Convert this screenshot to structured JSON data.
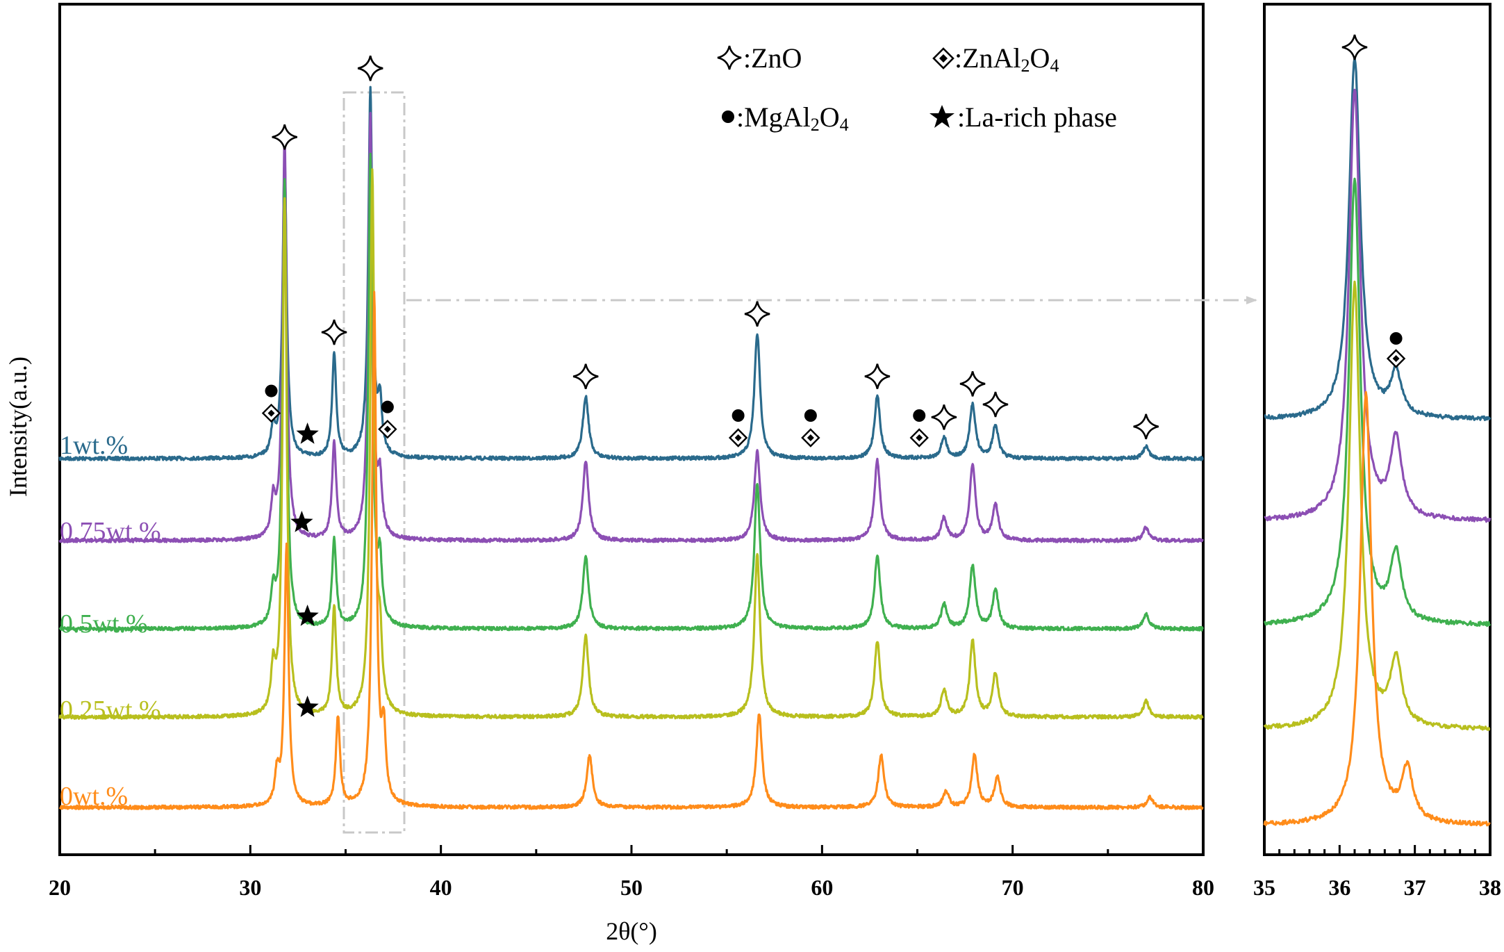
{
  "chart_data": [
    {
      "type": "line",
      "xlabel": "2θ(°)",
      "ylabel": "Intensity(a.u.)",
      "xlim": [
        20,
        80
      ],
      "x_ticks": [
        "20",
        "30",
        "40",
        "50",
        "60",
        "70",
        "80"
      ],
      "series": [
        {
          "name": "1wt.%",
          "color": "#2a6a8c",
          "peaks": [
            [
              31.2,
              0.07
            ],
            [
              31.8,
              0.72
            ],
            [
              34.4,
              0.25
            ],
            [
              36.3,
              0.88
            ],
            [
              36.8,
              0.12
            ],
            [
              47.6,
              0.15
            ],
            [
              56.6,
              0.3
            ],
            [
              62.9,
              0.15
            ],
            [
              66.4,
              0.05
            ],
            [
              67.9,
              0.13
            ],
            [
              69.1,
              0.08
            ],
            [
              77.0,
              0.03
            ]
          ]
        },
        {
          "name": "0.75wt.%",
          "color": "#8c4fb4",
          "peaks": [
            [
              31.2,
              0.08
            ],
            [
              31.8,
              0.9
            ],
            [
              34.4,
              0.22
            ],
            [
              36.3,
              0.95
            ],
            [
              36.8,
              0.12
            ],
            [
              47.6,
              0.18
            ],
            [
              56.6,
              0.2
            ],
            [
              62.9,
              0.18
            ],
            [
              66.4,
              0.05
            ],
            [
              67.9,
              0.17
            ],
            [
              69.1,
              0.08
            ],
            [
              77.0,
              0.03
            ]
          ]
        },
        {
          "name": "0.5wt.%",
          "color": "#3fb04f",
          "peaks": [
            [
              31.2,
              0.07
            ],
            [
              31.8,
              0.92
            ],
            [
              34.4,
              0.18
            ],
            [
              36.3,
              0.97
            ],
            [
              36.8,
              0.12
            ],
            [
              47.6,
              0.15
            ],
            [
              56.6,
              0.3
            ],
            [
              62.9,
              0.15
            ],
            [
              66.4,
              0.05
            ],
            [
              67.9,
              0.13
            ],
            [
              69.1,
              0.08
            ],
            [
              77.0,
              0.03
            ]
          ]
        },
        {
          "name": "0.25wt.%",
          "color": "#b8bf1e",
          "peaks": [
            [
              31.2,
              0.08
            ],
            [
              31.8,
              0.95
            ],
            [
              34.4,
              0.2
            ],
            [
              36.4,
              1.0
            ],
            [
              36.8,
              0.12
            ],
            [
              47.6,
              0.15
            ],
            [
              56.6,
              0.3
            ],
            [
              62.9,
              0.14
            ],
            [
              66.4,
              0.05
            ],
            [
              67.9,
              0.14
            ],
            [
              69.1,
              0.08
            ],
            [
              77.0,
              0.03
            ]
          ]
        },
        {
          "name": "0wt.%",
          "color": "#ff8c1a",
          "peaks": [
            [
              31.4,
              0.06
            ],
            [
              31.9,
              0.5
            ],
            [
              34.6,
              0.17
            ],
            [
              36.5,
              0.98
            ],
            [
              37.0,
              0.13
            ],
            [
              47.8,
              0.1
            ],
            [
              56.7,
              0.18
            ],
            [
              63.1,
              0.1
            ],
            [
              66.5,
              0.03
            ],
            [
              68.0,
              0.1
            ],
            [
              69.2,
              0.06
            ],
            [
              77.2,
              0.02
            ]
          ]
        }
      ],
      "markers": {
        "star_zno": [
          [
            31.8,
            "1wt.%"
          ],
          [
            34.4,
            "1wt.%"
          ],
          [
            36.3,
            "1wt.%"
          ],
          [
            47.6,
            "1wt.%"
          ],
          [
            56.6,
            "1wt.%"
          ],
          [
            62.9,
            "1wt.%"
          ],
          [
            66.4,
            "1wt.%"
          ],
          [
            67.9,
            "1wt.%"
          ],
          [
            69.1,
            "1wt.%"
          ],
          [
            77.0,
            "1wt.%"
          ]
        ],
        "diamond_znal2o4": [
          [
            31.1,
            "1wt.%"
          ],
          [
            37.2,
            "1wt.%"
          ],
          [
            55.6,
            "1wt.%"
          ],
          [
            59.4,
            "1wt.%"
          ],
          [
            65.1,
            "1wt.%"
          ]
        ],
        "dot_mgal2o4": [
          [
            31.1,
            "1wt.%"
          ],
          [
            37.2,
            "1wt.%"
          ],
          [
            55.6,
            "1wt.%"
          ],
          [
            59.4,
            "1wt.%"
          ],
          [
            65.1,
            "1wt.%"
          ]
        ],
        "star_la": [
          [
            33.0,
            "1wt.%"
          ],
          [
            32.7,
            "0.75wt.%"
          ],
          [
            33.0,
            "0.5wt.%"
          ],
          [
            33.0,
            "0.25wt.%"
          ]
        ]
      }
    },
    {
      "type": "line",
      "xlim": [
        35,
        38
      ],
      "x_ticks": [
        "35",
        "36",
        "37",
        "38"
      ],
      "series": [
        {
          "name": "1wt.%",
          "peaks": [
            [
              36.2,
              1.0
            ],
            [
              36.75,
              0.12
            ]
          ]
        },
        {
          "name": "0.75wt.%",
          "peaks": [
            [
              36.2,
              1.0
            ],
            [
              36.75,
              0.18
            ]
          ]
        },
        {
          "name": "0.5wt.%",
          "peaks": [
            [
              36.2,
              1.0
            ],
            [
              36.75,
              0.15
            ]
          ]
        },
        {
          "name": "0.25wt.%",
          "peaks": [
            [
              36.2,
              1.0
            ],
            [
              36.75,
              0.15
            ]
          ]
        },
        {
          "name": "0wt.%",
          "peaks": [
            [
              36.35,
              1.0
            ],
            [
              36.9,
              0.12
            ]
          ]
        }
      ],
      "markers": {
        "star_zno": [
          [
            36.2,
            "1wt.%"
          ]
        ],
        "dot_diamond": [
          [
            36.75,
            "1wt.%"
          ]
        ]
      }
    }
  ],
  "legend": {
    "zno": ":ZnO",
    "znal2o4": [
      ":ZnAl",
      "2",
      "O",
      "4"
    ],
    "mgal2o4": [
      ":MgAl",
      "2",
      "O",
      "4"
    ],
    "la_rich": ":La-rich phase"
  },
  "series_labels": [
    "1wt.%",
    "0.75wt.%",
    "0.5wt.%",
    "0.25wt.%",
    "0wt.%"
  ]
}
